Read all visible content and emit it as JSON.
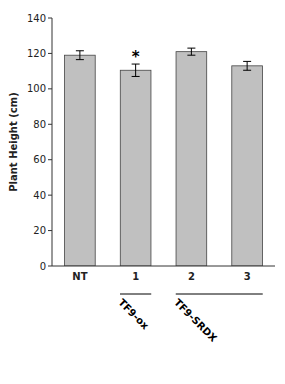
{
  "chart_data": {
    "type": "bar",
    "categories": [
      "NT",
      "1",
      "2",
      "3"
    ],
    "values": [
      119.0,
      110.5,
      121.0,
      113.0
    ],
    "errors": [
      2.5,
      3.5,
      2.0,
      2.5
    ],
    "color": "#c0c0c0",
    "ylabel": "Plant Height (cm)",
    "ylim": [
      0,
      140
    ],
    "yticks": [
      0,
      20,
      40,
      60,
      80,
      100,
      120,
      140
    ],
    "grid": false,
    "annotations": [
      {
        "text": "*",
        "category": "1"
      }
    ],
    "groups": [
      {
        "label": "TF9-ox",
        "categories": [
          "1"
        ]
      },
      {
        "label": "TF9-SRDX",
        "categories": [
          "2",
          "3"
        ]
      }
    ]
  }
}
